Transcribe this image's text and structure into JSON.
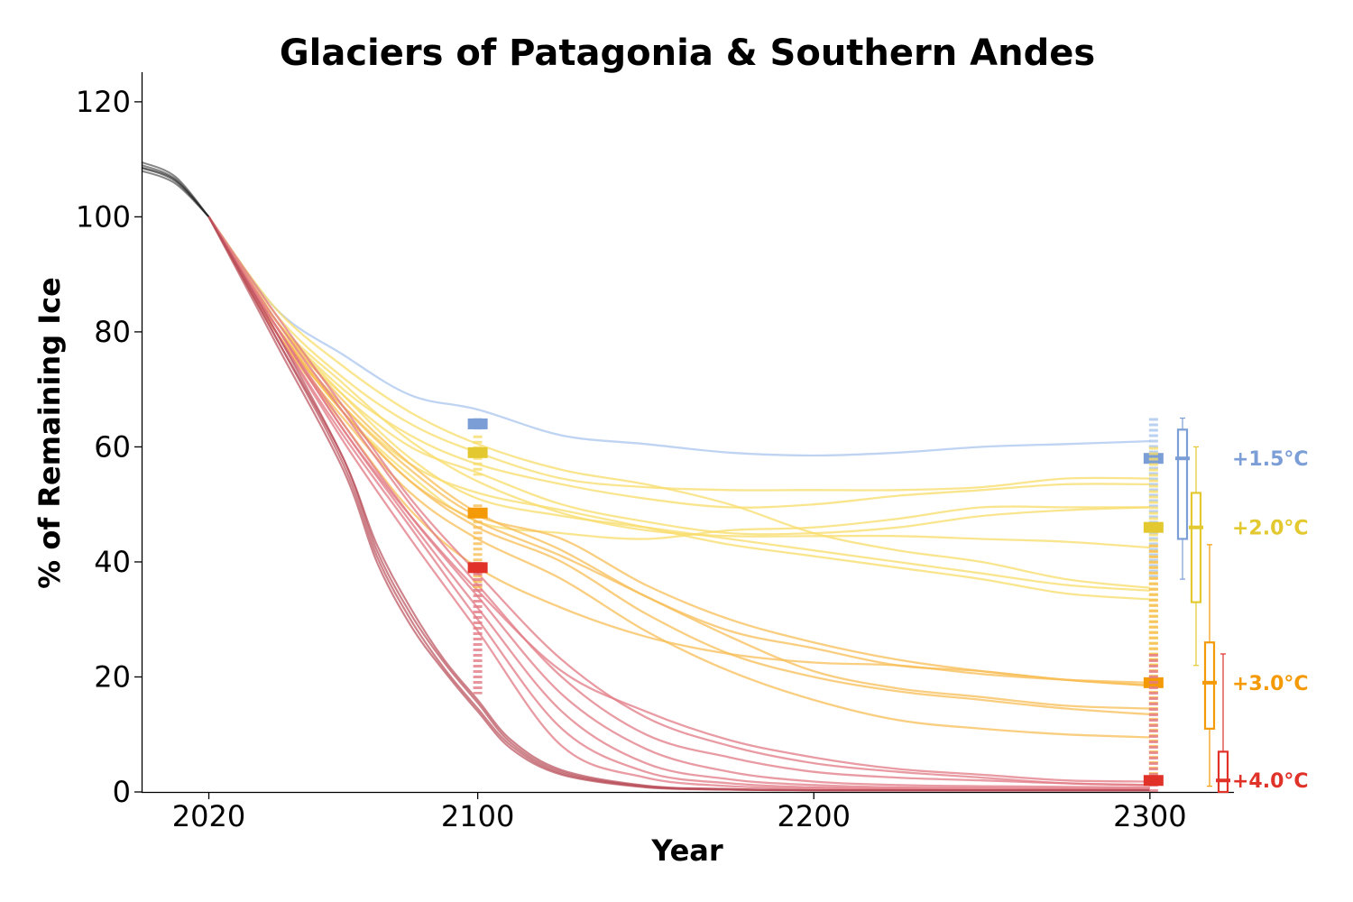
{
  "chart_data": {
    "type": "line",
    "title": "Glaciers of Patagonia & Southern Andes",
    "xlabel": "Year",
    "ylabel": "% of Remaining Ice",
    "xlim": [
      2000,
      2325
    ],
    "ylim": [
      0,
      125
    ],
    "x_ticks": [
      "2020",
      "2100",
      "2200",
      "2300"
    ],
    "y_ticks": [
      "0",
      "20",
      "40",
      "60",
      "80",
      "100",
      "120"
    ],
    "grid": false,
    "legend": "none",
    "historical": {
      "color": "#222222",
      "x": [
        2000,
        2010,
        2020
      ],
      "series": [
        {
          "values": [
            109.5,
            107,
            100
          ]
        },
        {
          "values": [
            109,
            106.6,
            100
          ]
        },
        {
          "values": [
            108.5,
            106.2,
            100
          ]
        },
        {
          "values": [
            108,
            105.8,
            100
          ]
        },
        {
          "values": [
            108.6,
            106.4,
            100
          ]
        }
      ]
    },
    "groups": [
      {
        "id": "w15",
        "label": "+1.5°C",
        "color": "#7b9ed6",
        "line_color": "#a9c4ee",
        "median_2100": 64,
        "range_2100": [
          63,
          65
        ],
        "median_2300": 58,
        "box_2300": {
          "q1": 44,
          "median": 58,
          "q3": 63,
          "whisker_low": 37,
          "whisker_high": 65
        },
        "series": [
          {
            "x": [
              2020,
              2040,
              2060,
              2080,
              2100,
              2125,
              2150,
              2175,
              2200,
              2225,
              2250,
              2275,
              2300
            ],
            "values": [
              100,
              84,
              76,
              69,
              66.5,
              62,
              60.5,
              59,
              58.5,
              59,
              60,
              60.5,
              61
            ]
          }
        ]
      },
      {
        "id": "w20",
        "label": "+2.0°C",
        "color": "#e3c92f",
        "line_color": "#f8dc6a",
        "median_2100": 59,
        "range_2100": [
          55,
          62
        ],
        "median_2300": 46,
        "box_2300": {
          "q1": 33,
          "median": 46,
          "q3": 52,
          "whisker_low": 22,
          "whisker_high": 60
        },
        "series": [
          {
            "x": [
              2020,
              2040,
              2060,
              2080,
              2100,
              2125,
              2150,
              2175,
              2200,
              2225,
              2250,
              2275,
              2300
            ],
            "values": [
              100,
              84,
              74,
              66,
              60.5,
              56,
              53.5,
              50,
              45,
              42,
              40,
              37,
              35.5
            ]
          },
          {
            "x": [
              2020,
              2040,
              2060,
              2080,
              2100,
              2125,
              2150,
              2175,
              2200,
              2225,
              2250,
              2275,
              2300
            ],
            "values": [
              100,
              83,
              72,
              64,
              59,
              54.5,
              53,
              52.5,
              52.5,
              52.5,
              53,
              54.5,
              54.5
            ]
          },
          {
            "x": [
              2020,
              2040,
              2060,
              2080,
              2100,
              2125,
              2150,
              2175,
              2200,
              2225,
              2250,
              2275,
              2300
            ],
            "values": [
              100,
              82,
              70,
              62,
              57,
              53.5,
              51,
              49.5,
              50,
              51.5,
              52.5,
              53.5,
              53.5
            ]
          },
          {
            "x": [
              2020,
              2040,
              2060,
              2080,
              2100,
              2125,
              2150,
              2175,
              2200,
              2225,
              2250,
              2275,
              2300
            ],
            "values": [
              100,
              81,
              69,
              60,
              55.5,
              50,
              47,
              45,
              45,
              46,
              48,
              49,
              49.5
            ]
          },
          {
            "x": [
              2020,
              2040,
              2060,
              2080,
              2100,
              2125,
              2150,
              2175,
              2200,
              2225,
              2250,
              2275,
              2300
            ],
            "values": [
              100,
              82,
              71,
              61,
              54,
              48.5,
              45.5,
              44.5,
              44.5,
              44.5,
              44,
              43.5,
              42.5
            ]
          },
          {
            "x": [
              2020,
              2040,
              2060,
              2080,
              2100,
              2125,
              2150,
              2175,
              2200,
              2225,
              2250,
              2275,
              2300
            ],
            "values": [
              100,
              82,
              69,
              58,
              51,
              48,
              46,
              44,
              42,
              40,
              38,
              36,
              35
            ]
          },
          {
            "x": [
              2020,
              2040,
              2060,
              2080,
              2100,
              2125,
              2150,
              2175,
              2200,
              2225,
              2250,
              2275,
              2300
            ],
            "values": [
              100,
              80,
              67,
              57,
              52,
              49,
              46,
              43,
              41,
              39,
              37,
              34.5,
              33.5
            ]
          },
          {
            "x": [
              2020,
              2040,
              2060,
              2080,
              2100,
              2125,
              2150,
              2175,
              2200,
              2225,
              2250,
              2275,
              2300
            ],
            "values": [
              100,
              81,
              66,
              55,
              47,
              45,
              44,
              45.5,
              46,
              47.5,
              49.5,
              49.5,
              49.5
            ]
          }
        ]
      },
      {
        "id": "w30",
        "label": "+3.0°C",
        "color": "#f59a07",
        "line_color": "#f8be55",
        "median_2100": 48.5,
        "range_2100": [
          35,
          50
        ],
        "median_2300": 19,
        "box_2300": {
          "q1": 11,
          "median": 19,
          "q3": 26,
          "whisker_low": 1,
          "whisker_high": 43
        },
        "series": [
          {
            "x": [
              2020,
              2040,
              2060,
              2080,
              2100,
              2125,
              2150,
              2175,
              2200,
              2225,
              2250,
              2275,
              2300
            ],
            "values": [
              100,
              82,
              68,
              57,
              48.5,
              42,
              34,
              28,
              25,
              22,
              21,
              19.5,
              18.5
            ]
          },
          {
            "x": [
              2020,
              2040,
              2060,
              2080,
              2100,
              2125,
              2150,
              2175,
              2200,
              2225,
              2250,
              2275,
              2300
            ],
            "values": [
              100,
              81,
              66,
              54,
              46,
              40,
              31,
              24,
              20,
              17.5,
              16,
              14.5,
              13.5
            ]
          },
          {
            "x": [
              2020,
              2040,
              2060,
              2080,
              2100,
              2125,
              2150,
              2175,
              2200,
              2225,
              2250,
              2275,
              2300
            ],
            "values": [
              100,
              80,
              65,
              52,
              44,
              37,
              28,
              21,
              16,
              12.5,
              11,
              10,
              9.5
            ]
          },
          {
            "x": [
              2020,
              2040,
              2060,
              2080,
              2100,
              2125,
              2150,
              2175,
              2200,
              2225,
              2250,
              2275,
              2300
            ],
            "values": [
              100,
              81,
              67,
              56,
              48,
              44,
              36,
              30,
              26,
              23,
              21,
              19.5,
              18.5
            ]
          },
          {
            "x": [
              2020,
              2040,
              2060,
              2080,
              2100,
              2125,
              2150,
              2175,
              2200,
              2225,
              2250,
              2275,
              2300
            ],
            "values": [
              100,
              80,
              64,
              49,
              39,
              32,
              27,
              24,
              22.5,
              22,
              20.5,
              19.5,
              19
            ]
          },
          {
            "x": [
              2020,
              2040,
              2060,
              2080,
              2100,
              2125,
              2150,
              2175,
              2200,
              2225,
              2250,
              2275,
              2300
            ],
            "values": [
              100,
              81,
              66,
              54,
              47,
              41,
              34,
              27,
              21,
              18,
              16.5,
              15,
              14.5
            ]
          }
        ]
      },
      {
        "id": "w40",
        "label": "+4.0°C",
        "color": "#e03228",
        "line_color": "#e27a84",
        "median_2100": 39,
        "range_2100": [
          17,
          40
        ],
        "median_2300": 2,
        "box_2300": {
          "q1": 0,
          "median": 2,
          "q3": 7,
          "whisker_low": 0,
          "whisker_high": 24
        },
        "series": [
          {
            "x": [
              2020,
              2040,
              2060,
              2080,
              2100,
              2125,
              2150,
              2175,
              2200,
              2225,
              2250,
              2275,
              2300
            ],
            "values": [
              100,
              83,
              67,
              51,
              38,
              23,
              13,
              8,
              5,
              3.5,
              2.5,
              1.5,
              1.2
            ]
          },
          {
            "x": [
              2020,
              2040,
              2060,
              2080,
              2100,
              2125,
              2150,
              2175,
              2200,
              2225,
              2250,
              2275,
              2300
            ],
            "values": [
              100,
              82,
              66,
              50,
              36,
              20,
              10,
              6,
              3.5,
              2.5,
              2,
              1.5,
              1.2
            ]
          },
          {
            "x": [
              2020,
              2040,
              2060,
              2080,
              2100,
              2125,
              2150,
              2175,
              2200,
              2225,
              2250,
              2275,
              2300
            ],
            "values": [
              100,
              81,
              64,
              48,
              34,
              17,
              7.5,
              3.5,
              1.8,
              1.2,
              1,
              0.9,
              0.8
            ]
          },
          {
            "x": [
              2020,
              2040,
              2060,
              2080,
              2100,
              2125,
              2150,
              2175,
              2200,
              2225,
              2250,
              2275,
              2300
            ],
            "values": [
              100,
              81,
              63,
              47,
              32,
              14,
              5,
              2.2,
              1.2,
              0.8,
              0.7,
              0.6,
              0.6
            ]
          },
          {
            "x": [
              2020,
              2040,
              2060,
              2080,
              2100,
              2125,
              2150,
              2175,
              2200,
              2225,
              2250,
              2275,
              2300
            ],
            "values": [
              100,
              80,
              62,
              46,
              30,
              11,
              3.5,
              1.5,
              0.8,
              0.6,
              0.5,
              0.5,
              0.5
            ]
          },
          {
            "x": [
              2020,
              2040,
              2060,
              2080,
              2100,
              2125,
              2150,
              2175,
              2200,
              2225,
              2250,
              2275,
              2300
            ],
            "values": [
              100,
              81,
              63,
              48,
              35,
              21,
              14,
              9,
              6,
              4,
              3,
              2,
              1.8
            ]
          },
          {
            "x": [
              2020,
              2040,
              2060,
              2080,
              2100,
              2125,
              2150,
              2175,
              2200,
              2225,
              2250,
              2275,
              2300
            ],
            "values": [
              100,
              80,
              61,
              44,
              28,
              8,
              2.5,
              1,
              0.6,
              0.4,
              0.3,
              0.3,
              0.3
            ]
          }
        ],
        "dark_color": "#b94f5a",
        "dark_series": [
          {
            "x": [
              2020,
              2040,
              2060,
              2070,
              2080,
              2090,
              2100,
              2110,
              2125,
              2150,
              2175,
              2200,
              2250,
              2300
            ],
            "values": [
              100,
              78,
              56,
              40,
              29,
              21,
              14,
              7.5,
              3,
              0.8,
              0.4,
              0.3,
              0.3,
              0.3
            ]
          },
          {
            "x": [
              2020,
              2040,
              2060,
              2070,
              2080,
              2090,
              2100,
              2110,
              2125,
              2150,
              2175,
              2200,
              2250,
              2300
            ],
            "values": [
              100,
              79,
              57,
              41,
              30,
              21.5,
              14.5,
              8,
              3.2,
              0.9,
              0.4,
              0.3,
              0.3,
              0.3
            ]
          },
          {
            "x": [
              2020,
              2040,
              2060,
              2070,
              2080,
              2090,
              2100,
              2110,
              2125,
              2150,
              2175,
              2200,
              2250,
              2300
            ],
            "values": [
              100,
              79,
              58,
              42,
              31,
              22.5,
              15.5,
              8.5,
              3.5,
              1,
              0.5,
              0.3,
              0.3,
              0.3
            ]
          },
          {
            "x": [
              2020,
              2040,
              2060,
              2070,
              2080,
              2090,
              2100,
              2110,
              2125,
              2150,
              2175,
              2200,
              2250,
              2300
            ],
            "values": [
              100,
              80,
              58,
              43,
              32,
              23,
              16,
              9,
              3.8,
              1.1,
              0.5,
              0.3,
              0.3,
              0.3
            ]
          }
        ]
      }
    ]
  }
}
